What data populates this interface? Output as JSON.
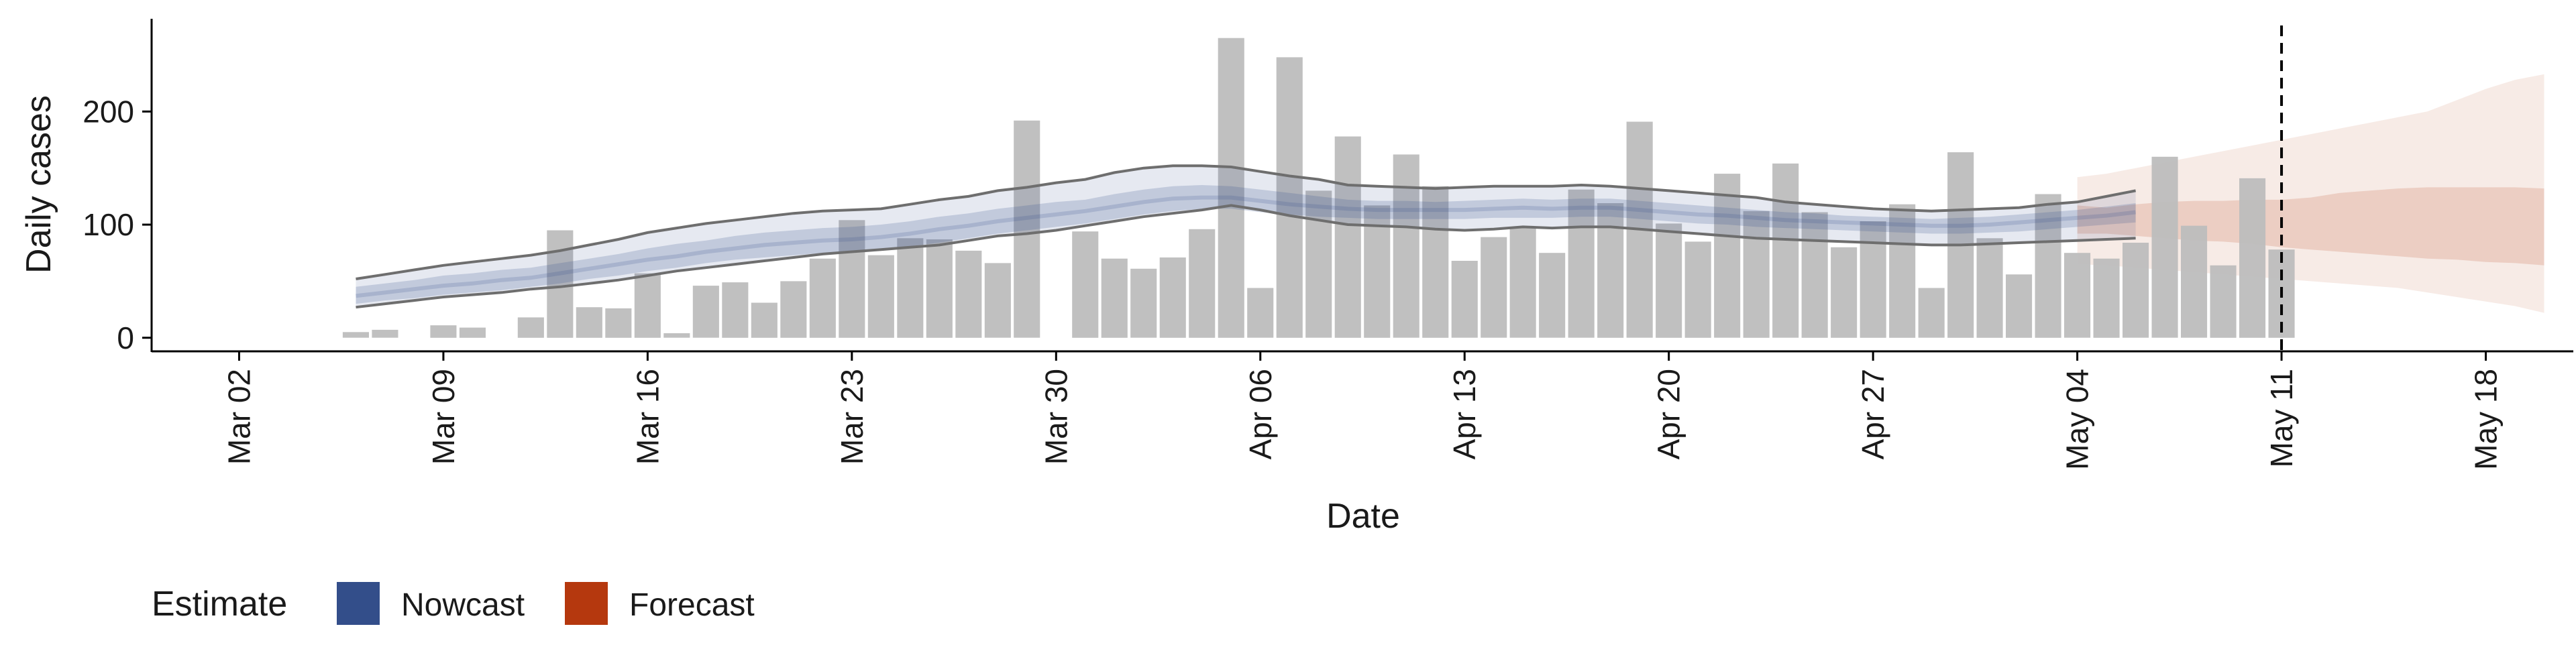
{
  "chart_data": {
    "type": "bar",
    "xlabel": "Date",
    "ylabel": "Daily cases",
    "xlim": [
      "2020-02-28",
      "2020-05-21"
    ],
    "ylim": [
      -12,
      282
    ],
    "x_ticks": [
      {
        "date": "2020-03-02",
        "label": "Mar 02"
      },
      {
        "date": "2020-03-09",
        "label": "Mar 09"
      },
      {
        "date": "2020-03-16",
        "label": "Mar 16"
      },
      {
        "date": "2020-03-23",
        "label": "Mar 23"
      },
      {
        "date": "2020-03-30",
        "label": "Mar 30"
      },
      {
        "date": "2020-04-06",
        "label": "Apr 06"
      },
      {
        "date": "2020-04-13",
        "label": "Apr 13"
      },
      {
        "date": "2020-04-20",
        "label": "Apr 20"
      },
      {
        "date": "2020-04-27",
        "label": "Apr 27"
      },
      {
        "date": "2020-05-04",
        "label": "May 04"
      },
      {
        "date": "2020-05-11",
        "label": "May 11"
      },
      {
        "date": "2020-05-18",
        "label": "May 18"
      }
    ],
    "y_ticks": [
      {
        "value": 0,
        "label": "0"
      },
      {
        "value": 100,
        "label": "100"
      },
      {
        "value": 200,
        "label": "200"
      }
    ],
    "grid": false,
    "legend": {
      "title": "Estimate",
      "placement": "bottom-left",
      "items": [
        {
          "label": "Nowcast",
          "color": "#334E8A"
        },
        {
          "label": "Forecast",
          "color": "#B5380E"
        }
      ]
    },
    "reference_line": {
      "date": "2020-05-11",
      "style": "dashed"
    },
    "cases": {
      "name": "Daily cases",
      "color": "#BDBDBD",
      "start": "2020-03-06",
      "values": [
        5,
        7,
        0,
        11,
        9,
        0,
        18,
        95,
        27,
        26,
        57,
        4,
        46,
        49,
        31,
        50,
        70,
        104,
        73,
        88,
        87,
        77,
        66,
        192,
        0,
        94,
        70,
        61,
        71,
        96,
        265,
        44,
        248,
        130,
        178,
        117,
        162,
        134,
        68,
        89,
        97,
        75,
        131,
        119,
        191,
        101,
        85,
        145,
        112,
        154,
        111,
        80,
        103,
        118,
        44,
        164,
        88,
        56,
        127,
        75,
        70,
        84,
        160,
        99,
        64,
        141,
        78
      ]
    },
    "nowcast": {
      "name": "Nowcast",
      "color": "#334E8A",
      "start": "2020-03-06",
      "outer_upper": [
        52,
        56,
        60,
        64,
        67,
        70,
        73,
        77,
        82,
        87,
        93,
        97,
        101,
        104,
        107,
        110,
        112,
        113,
        114,
        118,
        122,
        125,
        130,
        133,
        137,
        140,
        146,
        150,
        152,
        152,
        151,
        147,
        143,
        140,
        135,
        134,
        133,
        132,
        133,
        134,
        134,
        134,
        135,
        134,
        132,
        130,
        128,
        126,
        124,
        120,
        118,
        116,
        114,
        113,
        112,
        113,
        114,
        115,
        118,
        120,
        125,
        130
      ],
      "upper50": [
        45,
        48,
        51,
        55,
        57,
        60,
        62,
        66,
        70,
        74,
        79,
        83,
        86,
        90,
        93,
        95,
        97,
        98,
        100,
        103,
        107,
        110,
        114,
        117,
        120,
        122,
        127,
        131,
        134,
        135,
        134,
        131,
        128,
        125,
        122,
        121,
        121,
        120,
        121,
        122,
        123,
        122,
        123,
        123,
        121,
        119,
        117,
        115,
        113,
        111,
        110,
        108,
        107,
        106,
        105,
        106,
        107,
        109,
        111,
        113,
        116,
        119
      ],
      "median": [
        37,
        40,
        43,
        46,
        48,
        51,
        53,
        57,
        61,
        65,
        69,
        72,
        76,
        79,
        82,
        84,
        86,
        87,
        89,
        92,
        96,
        99,
        103,
        106,
        109,
        112,
        116,
        120,
        123,
        124,
        124,
        121,
        118,
        116,
        114,
        113,
        113,
        113,
        113,
        114,
        115,
        114,
        115,
        115,
        113,
        111,
        109,
        108,
        106,
        104,
        103,
        102,
        101,
        100,
        99,
        99,
        100,
        102,
        104,
        106,
        108,
        111
      ],
      "lower50": [
        30,
        33,
        35,
        38,
        40,
        42,
        45,
        48,
        52,
        55,
        59,
        62,
        66,
        69,
        71,
        73,
        75,
        76,
        78,
        81,
        84,
        88,
        92,
        95,
        98,
        101,
        105,
        109,
        112,
        114,
        114,
        111,
        109,
        107,
        106,
        105,
        105,
        105,
        105,
        106,
        106,
        106,
        107,
        107,
        105,
        103,
        101,
        100,
        98,
        97,
        96,
        95,
        94,
        93,
        92,
        92,
        93,
        94,
        96,
        98,
        100,
        102
      ],
      "outer_lower": [
        27,
        30,
        33,
        36,
        38,
        40,
        43,
        45,
        48,
        51,
        55,
        59,
        62,
        65,
        68,
        71,
        74,
        76,
        78,
        80,
        82,
        86,
        90,
        92,
        95,
        99,
        103,
        107,
        110,
        113,
        117,
        113,
        108,
        104,
        100,
        99,
        98,
        96,
        95,
        96,
        98,
        97,
        98,
        98,
        96,
        94,
        92,
        90,
        88,
        87,
        86,
        85,
        84,
        83,
        82,
        82,
        83,
        84,
        85,
        86,
        87,
        88
      ]
    },
    "forecast": {
      "name": "Forecast",
      "color": "#B5380E",
      "start": "2020-05-04",
      "upper90": [
        142,
        145,
        150,
        155,
        160,
        165,
        170,
        175,
        180,
        185,
        190,
        195,
        200,
        210,
        220,
        228,
        233
      ],
      "upper50": [
        117,
        115,
        118,
        120,
        121,
        121,
        122,
        122,
        124,
        128,
        130,
        132,
        133,
        133,
        133,
        133,
        132
      ],
      "lower50": [
        92,
        92,
        90,
        88,
        86,
        85,
        83,
        80,
        78,
        76,
        74,
        72,
        70,
        69,
        67,
        66,
        64
      ],
      "lower90": [
        65,
        64,
        62,
        60,
        58,
        56,
        54,
        52,
        50,
        48,
        46,
        44,
        40,
        36,
        32,
        28,
        22
      ]
    }
  }
}
